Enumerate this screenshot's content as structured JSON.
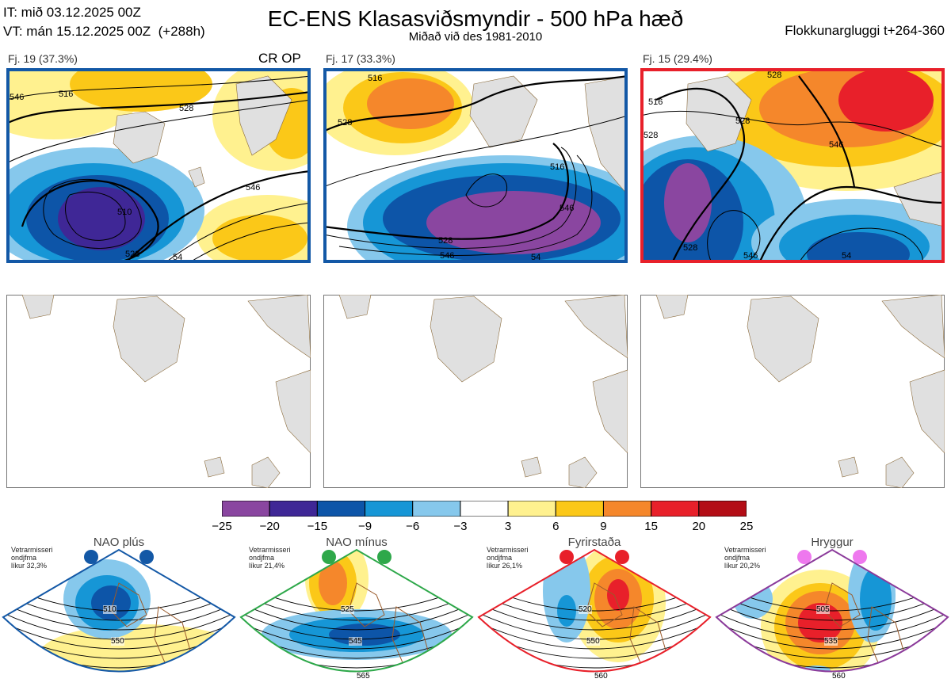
{
  "header": {
    "it_line": "IT: mið 03.12.2025 00Z",
    "vt_line": "VT: mán 15.12.2025 00Z  (+288h)",
    "title": "EC-ENS Klasasviðsmyndir - 500 hPa hæð",
    "subtitle": "Miðað við des 1981-2010",
    "window": "Flokkunargluggi t+264-360"
  },
  "clusters": [
    {
      "label": "Fj. 19 (37.3%)",
      "tag": "CR OP",
      "border": "#1358a6",
      "contours": [
        "546",
        "528",
        "516",
        "528",
        "510",
        "546",
        "54"
      ]
    },
    {
      "label": "Fj. 17 (33.3%)",
      "tag": "",
      "border": "#1358a6",
      "contours": [
        "516",
        "528",
        "516",
        "528",
        "546",
        "546",
        "54"
      ]
    },
    {
      "label": "Fj. 15 (29.4%)",
      "tag": "",
      "border": "#e8202a",
      "contours": [
        "516",
        "528",
        "528",
        "546",
        "528",
        "528",
        "546",
        "54"
      ]
    }
  ],
  "colorbar": {
    "colors": [
      "#8a46a0",
      "#3f2796",
      "#0d55a8",
      "#1696d6",
      "#86c8ec",
      "#ffffff",
      "#fff18f",
      "#fbc818",
      "#f5872b",
      "#e8202a",
      "#b30d16"
    ],
    "labels": [
      "−25",
      "−20",
      "−15",
      "−9",
      "−6",
      "−3",
      "3",
      "6",
      "9",
      "15",
      "20",
      "25"
    ]
  },
  "climatology": [
    {
      "title": "NAO plús",
      "note": [
        "Vetrarmisseri",
        "ondjfma",
        "líkur 32,3%"
      ],
      "color": "#1358a6",
      "dot": "#1358a6",
      "contours": [
        "510",
        "550"
      ]
    },
    {
      "title": "NAO mínus",
      "note": [
        "Vetrarmisseri",
        "ondjfma",
        "líkur 21,4%"
      ],
      "color": "#2ea84a",
      "dot": "#2ea84a",
      "contours": [
        "525",
        "545",
        "565"
      ]
    },
    {
      "title": "Fyrirstaða",
      "note": [
        "Vetrarmisseri",
        "ondjfma",
        "líkur 26,1%"
      ],
      "color": "#e8202a",
      "dot": "#e8202a",
      "contours": [
        "520",
        "550",
        "560"
      ]
    },
    {
      "title": "Hryggur",
      "note": [
        "Vetrarmisseri",
        "ondjfma",
        "líkur 20,2%"
      ],
      "color": "#8b3a9a",
      "dot": "#ee78ee",
      "contours": [
        "505",
        "535",
        "560"
      ]
    }
  ]
}
